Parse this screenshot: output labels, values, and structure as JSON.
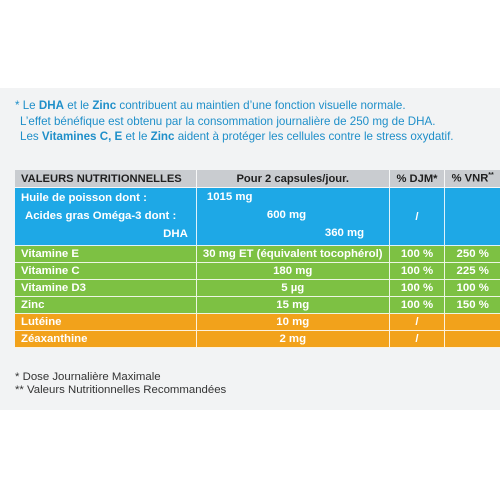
{
  "intro": {
    "l1_pre": "* Le ",
    "l1_dha": "DHA",
    "l1_mid": " et le ",
    "l1_zinc": "Zinc",
    "l1_post": " contribuent au maintien d’une fonction visuelle normale.",
    "l2": "L’effet bénéfique est obtenu par la consommation journalière de 250 mg de DHA.",
    "l3_pre": "Les ",
    "l3_vit": "Vitamines C, E",
    "l3_mid": " et le ",
    "l3_zinc": "Zinc",
    "l3_post": " aident à protéger les cellules contre le stress oxydatif."
  },
  "table": {
    "headers": {
      "col1": "VALEURS NUTRITIONNELLES",
      "col2": "Pour 2 capsules/jour.",
      "col3": "% DJM*",
      "col4": "% VNR",
      "col4_sup": "**"
    },
    "omega": {
      "huile": "Huile de poisson dont :",
      "acides": "Acides gras Oméga-3 dont :",
      "dha": "DHA",
      "v1": "1015 mg",
      "v2": "600 mg",
      "v3": "360 mg",
      "djm": "/"
    },
    "rows": [
      {
        "name": "Vitamine E",
        "amount": "30 mg ET (équivalent tocophérol)",
        "djm": "100 %",
        "vnr": "250 %",
        "color": "green"
      },
      {
        "name": "Vitamine C",
        "amount": "180 mg",
        "djm": "100 %",
        "vnr": "225 %",
        "color": "green"
      },
      {
        "name": "Vitamine D3",
        "amount": "5 µg",
        "djm": "100 %",
        "vnr": "100 %",
        "color": "green"
      },
      {
        "name": "Zinc",
        "amount": "15 mg",
        "djm": "100 %",
        "vnr": "150 %",
        "color": "green"
      },
      {
        "name": "Lutéine",
        "amount": "10 mg",
        "djm": "/",
        "vnr": "",
        "color": "orange"
      },
      {
        "name": "Zéaxanthine",
        "amount": "2 mg",
        "djm": "/",
        "vnr": "",
        "color": "orange"
      }
    ]
  },
  "footnotes": {
    "djm": "* Dose Journalière Maximale",
    "vnr": "** Valeurs Nutritionnelles Recommandées"
  },
  "colors": {
    "blue": "#1ea8e6",
    "green": "#7dc143",
    "orange": "#f2a21b",
    "header_gray": "#c9ccd0",
    "text_blue": "#1f8fc9"
  }
}
